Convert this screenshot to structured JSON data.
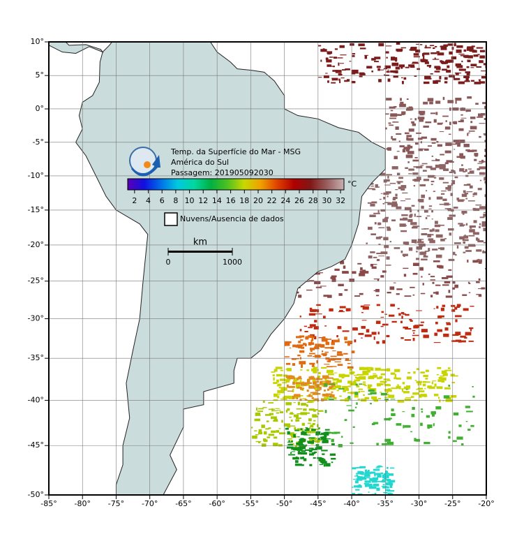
{
  "map": {
    "xlim": [
      -85,
      -20
    ],
    "ylim": [
      -50,
      10
    ],
    "xticks": [
      {
        "value": -85,
        "label": "-85°"
      },
      {
        "value": -80,
        "label": "-80°"
      },
      {
        "value": -75,
        "label": "-75°"
      },
      {
        "value": -70,
        "label": "-70°"
      },
      {
        "value": -65,
        "label": "-65°"
      },
      {
        "value": -60,
        "label": "-60°"
      },
      {
        "value": -55,
        "label": "-55°"
      },
      {
        "value": -50,
        "label": "-50°"
      },
      {
        "value": -45,
        "label": "-45°"
      },
      {
        "value": -40,
        "label": "-40°"
      },
      {
        "value": -35,
        "label": "-35°"
      },
      {
        "value": -30,
        "label": "-30°"
      },
      {
        "value": -25,
        "label": "-25°"
      },
      {
        "value": -20,
        "label": "-20°"
      }
    ],
    "yticks": [
      {
        "value": 10,
        "label": "10°"
      },
      {
        "value": 5,
        "label": "5°"
      },
      {
        "value": 0,
        "label": "0°"
      },
      {
        "value": -5,
        "label": "-5°"
      },
      {
        "value": -10,
        "label": "-10°"
      },
      {
        "value": -15,
        "label": "-15°"
      },
      {
        "value": -20,
        "label": "-20°"
      },
      {
        "value": -25,
        "label": "-25°"
      },
      {
        "value": -30,
        "label": "-30°"
      },
      {
        "value": -35,
        "label": "-35°"
      },
      {
        "value": -40,
        "label": "-40°"
      },
      {
        "value": -45,
        "label": "-45°"
      },
      {
        "value": -50,
        "label": "-50°"
      }
    ],
    "grid": true
  },
  "legend": {
    "title": "Temp. da Superfície do Mar - MSG",
    "region": "América do Sul",
    "pass": "Passagem: 201905092030",
    "colorbar": {
      "lim": [
        1,
        32.5
      ],
      "ticks": [
        2,
        4,
        6,
        8,
        10,
        12,
        14,
        16,
        18,
        20,
        22,
        24,
        26,
        28,
        30,
        32
      ],
      "unit": "°C",
      "colors": [
        "#5a00b4",
        "#1010e0",
        "#0070e8",
        "#00c8e0",
        "#00d8a0",
        "#00b040",
        "#50c020",
        "#c8d800",
        "#f0a000",
        "#e04000",
        "#b00000",
        "#801818",
        "#9a6060",
        "#c8b0b0"
      ]
    },
    "cloud_label": "Nuvens/Ausencia de dados",
    "scale": {
      "unit": "km",
      "ticks": [
        0,
        1000
      ]
    }
  }
}
